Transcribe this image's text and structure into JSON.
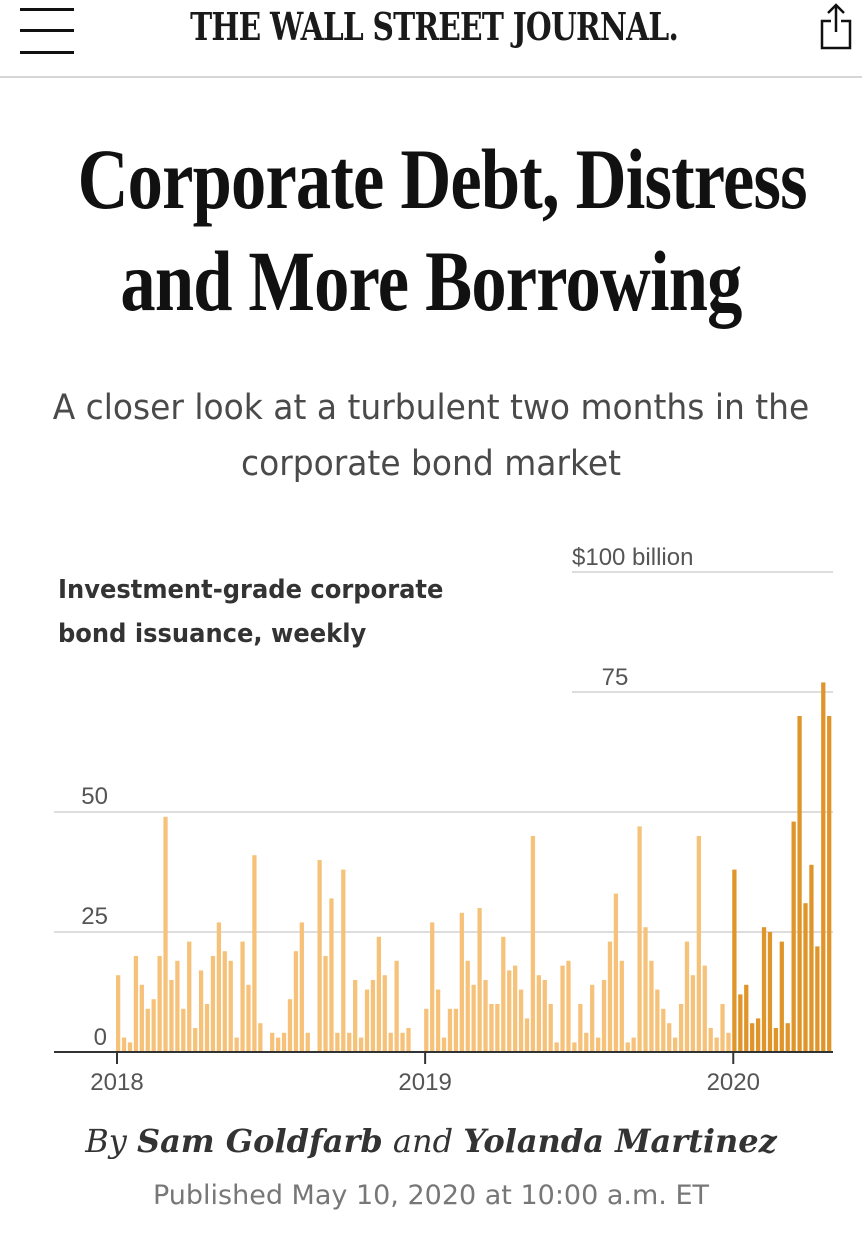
{
  "header": {
    "masthead": "THE WALL STREET JOURNAL."
  },
  "article": {
    "headline_line1": "Corporate Debt, Distress",
    "headline_line2": "and More Borrowing",
    "dek": "A closer look at a turbulent two months in the corporate bond market",
    "byline_prefix": "By ",
    "author1": "Sam Goldfarb",
    "byline_and": " and ",
    "author2": "Yolanda Martinez",
    "published": "Published May 10, 2020 at 10:00 a.m. ET"
  },
  "colors": {
    "bar_light": "#f6c27a",
    "bar_dark": "#e0952a",
    "grid": "#dddddd",
    "axis": "#333333"
  },
  "chart_data": {
    "type": "bar",
    "title": "Investment-grade corporate bond issuance, weekly",
    "y_ticks": [
      {
        "value": 0,
        "label": "0"
      },
      {
        "value": 25,
        "label": "25"
      },
      {
        "value": 50,
        "label": "50"
      },
      {
        "value": 75,
        "label": "75"
      },
      {
        "value": 100,
        "label": "$100 billion"
      }
    ],
    "ylim": [
      0,
      105
    ],
    "x_ticks": [
      {
        "index": 0,
        "label": "2018"
      },
      {
        "index": 52,
        "label": "2019"
      },
      {
        "index": 104,
        "label": "2020"
      }
    ],
    "highlight_start_index": 104,
    "series": [
      {
        "name": "Weekly issuance ($ billion)",
        "values": [
          16,
          3,
          2,
          20,
          14,
          9,
          11,
          20,
          49,
          15,
          19,
          9,
          23,
          5,
          17,
          10,
          20,
          27,
          21,
          19,
          3,
          23,
          14,
          41,
          6,
          0,
          4,
          3,
          4,
          11,
          21,
          27,
          4,
          0,
          40,
          20,
          32,
          4,
          38,
          4,
          15,
          3,
          13,
          15,
          24,
          16,
          4,
          19,
          4,
          5,
          0,
          0,
          9,
          27,
          13,
          3,
          9,
          9,
          29,
          19,
          14,
          30,
          15,
          10,
          10,
          24,
          17,
          18,
          13,
          7,
          45,
          16,
          15,
          10,
          2,
          18,
          19,
          2,
          10,
          4,
          14,
          3,
          15,
          23,
          33,
          19,
          2,
          3,
          47,
          26,
          19,
          13,
          9,
          6,
          3,
          10,
          23,
          16,
          45,
          18,
          5,
          3,
          10,
          4,
          38,
          12,
          14,
          6,
          7,
          26,
          25,
          5,
          23,
          6,
          48,
          70,
          31,
          39,
          22,
          77,
          70
        ]
      }
    ]
  }
}
